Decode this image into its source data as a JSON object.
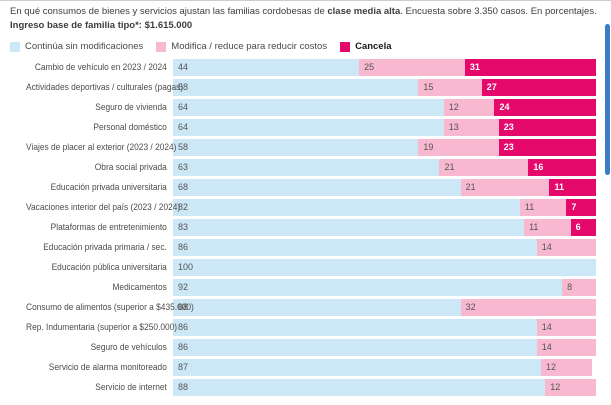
{
  "header": {
    "title_parts": [
      {
        "text": "En qué consumos de bienes y servicios ajustan las familias cordobesas de ",
        "bold": false
      },
      {
        "text": "clase media alta",
        "bold": true
      },
      {
        "text": ". Encuesta sobre 3.350 casos. En porcentajes.",
        "bold": false
      }
    ],
    "subtitle": "Ingreso base de familia tipo*: $1.615.000"
  },
  "legend": {
    "items": [
      {
        "key": "continua",
        "label": "Continúa sin modificaciones",
        "color": "#cce8f6",
        "bold": false
      },
      {
        "key": "modifica",
        "label": "Modifica / reduce para reducir costos",
        "color": "#f7b8d0",
        "bold": false
      },
      {
        "key": "cancela",
        "label": "Cancela",
        "color": "#e5096b",
        "bold": true
      }
    ]
  },
  "chart_data": {
    "type": "bar",
    "orientation": "horizontal",
    "stacked": true,
    "xlim": [
      0,
      100
    ],
    "grid": false,
    "legend_position": "top",
    "title": "En qué consumos de bienes y servicios ajustan las familias cordobesas de clase media alta. Encuesta sobre 3.350 casos. En porcentajes. Ingreso base de familia tipo*: $1.615.000",
    "categories": [
      "Cambio de vehículo en 2023 / 2024",
      "Actividades deportivas / culturales (pagas)",
      "Seguro de vivienda",
      "Personal doméstico",
      "Viajes de placer al exterior (2023 / 2024)",
      "Obra social privada",
      "Educación privada universitaria",
      "Vacaciones interior del país (2023 / 2024)",
      "Plataformas de entretenimiento",
      "Educación privada primaria / sec.",
      "Educación pública universitaria",
      "Medicamentos",
      "Consumo de alimentos (superior a $435.000)",
      "Rep. Indumentaria (superior a $250.000)",
      "Seguro de vehículos",
      "Servicio de alarma monitoreado",
      "Servicio de internet"
    ],
    "series": [
      {
        "key": "continua",
        "name": "Continúa sin modificaciones",
        "color": "#cce8f6",
        "text_color": "#555555",
        "bold_values": false,
        "values": [
          44,
          58,
          64,
          64,
          58,
          63,
          68,
          82,
          83,
          86,
          100,
          92,
          68,
          86,
          86,
          87,
          88
        ]
      },
      {
        "key": "modifica",
        "name": "Modifica / reduce para reducir costos",
        "color": "#f7b8d0",
        "text_color": "#555555",
        "bold_values": false,
        "values": [
          25,
          15,
          12,
          13,
          19,
          21,
          21,
          11,
          11,
          14,
          0,
          8,
          32,
          14,
          14,
          12,
          12
        ]
      },
      {
        "key": "cancela",
        "name": "Cancela",
        "color": "#e5096b",
        "text_color": "#ffffff",
        "bold_values": true,
        "values": [
          31,
          27,
          24,
          23,
          23,
          16,
          11,
          7,
          6,
          0,
          0,
          0,
          0,
          0,
          0,
          0,
          0
        ]
      }
    ]
  },
  "scrollbar": {
    "color": "#3c7cc7"
  }
}
